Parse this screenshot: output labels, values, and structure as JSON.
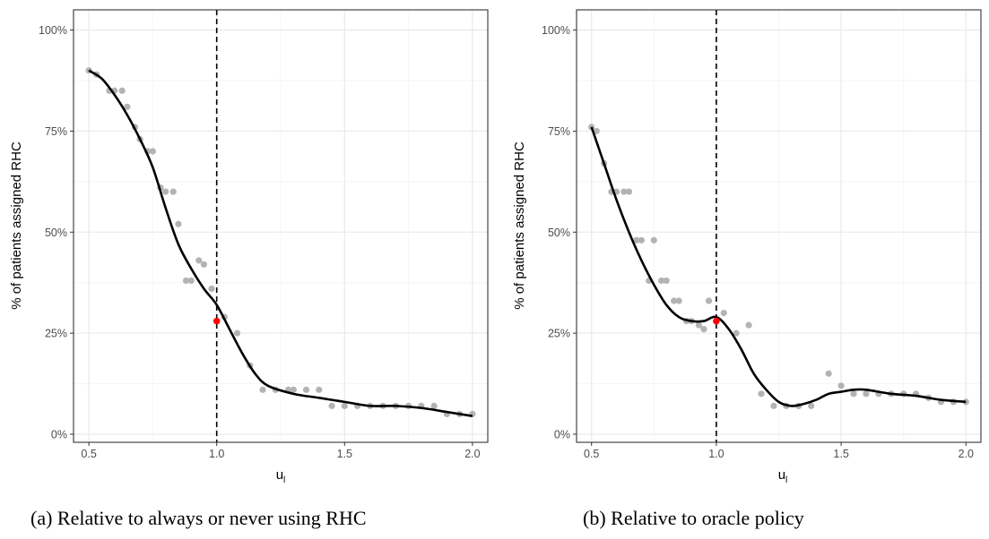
{
  "chart_data": [
    {
      "type": "scatter",
      "caption": "(a) Relative to always or never using RHC",
      "xlabel": "u",
      "xlabel_sub": "l",
      "ylabel": "% of patients assigned RHC",
      "xlim": [
        0.44,
        2.06
      ],
      "ylim": [
        -0.02,
        1.05
      ],
      "xticks": [
        0.5,
        1.0,
        1.5,
        2.0
      ],
      "xtick_labels": [
        "0.5",
        "1.0",
        "1.5",
        "2.0"
      ],
      "yticks": [
        0,
        0.25,
        0.5,
        0.75,
        1.0
      ],
      "ytick_labels": [
        "0%",
        "25%",
        "50%",
        "75%",
        "100%"
      ],
      "grid": true,
      "vline_x": 1.0,
      "points": {
        "x": [
          0.5,
          0.53,
          0.58,
          0.6,
          0.63,
          0.65,
          0.68,
          0.7,
          0.73,
          0.75,
          0.78,
          0.8,
          0.83,
          0.85,
          0.88,
          0.9,
          0.93,
          0.95,
          0.98,
          1.03,
          1.08,
          1.13,
          1.18,
          1.23,
          1.28,
          1.3,
          1.35,
          1.4,
          1.45,
          1.5,
          1.55,
          1.6,
          1.65,
          1.7,
          1.75,
          1.8,
          1.85,
          1.9,
          1.95,
          2.0
        ],
        "y": [
          0.9,
          0.89,
          0.85,
          0.85,
          0.85,
          0.81,
          0.76,
          0.73,
          0.7,
          0.7,
          0.61,
          0.6,
          0.6,
          0.52,
          0.38,
          0.38,
          0.43,
          0.42,
          0.36,
          0.29,
          0.25,
          0.17,
          0.11,
          0.11,
          0.11,
          0.11,
          0.11,
          0.11,
          0.07,
          0.07,
          0.07,
          0.07,
          0.07,
          0.07,
          0.07,
          0.07,
          0.07,
          0.05,
          0.05,
          0.05
        ]
      },
      "highlight": {
        "x": 1.0,
        "y": 0.28
      },
      "smooth": {
        "x": [
          0.5,
          0.55,
          0.6,
          0.65,
          0.7,
          0.75,
          0.8,
          0.85,
          0.9,
          0.95,
          1.0,
          1.05,
          1.1,
          1.15,
          1.2,
          1.3,
          1.4,
          1.5,
          1.6,
          1.7,
          1.8,
          1.9,
          2.0
        ],
        "y": [
          0.9,
          0.88,
          0.84,
          0.79,
          0.73,
          0.66,
          0.56,
          0.47,
          0.41,
          0.36,
          0.32,
          0.26,
          0.2,
          0.15,
          0.12,
          0.1,
          0.09,
          0.08,
          0.07,
          0.07,
          0.065,
          0.055,
          0.045
        ]
      }
    },
    {
      "type": "scatter",
      "caption": "(b) Relative to oracle policy",
      "xlabel": "u",
      "xlabel_sub": "l",
      "ylabel": "% of patients assigned RHC",
      "xlim": [
        0.44,
        2.06
      ],
      "ylim": [
        -0.02,
        1.05
      ],
      "xticks": [
        0.5,
        1.0,
        1.5,
        2.0
      ],
      "xtick_labels": [
        "0.5",
        "1.0",
        "1.5",
        "2.0"
      ],
      "yticks": [
        0,
        0.25,
        0.5,
        0.75,
        1.0
      ],
      "ytick_labels": [
        "0%",
        "25%",
        "50%",
        "75%",
        "100%"
      ],
      "grid": true,
      "vline_x": 1.0,
      "points": {
        "x": [
          0.5,
          0.52,
          0.55,
          0.58,
          0.6,
          0.63,
          0.65,
          0.68,
          0.7,
          0.73,
          0.75,
          0.78,
          0.8,
          0.83,
          0.85,
          0.88,
          0.9,
          0.93,
          0.95,
          0.97,
          1.03,
          1.08,
          1.13,
          1.18,
          1.23,
          1.28,
          1.33,
          1.38,
          1.45,
          1.5,
          1.55,
          1.6,
          1.65,
          1.7,
          1.75,
          1.8,
          1.85,
          1.9,
          1.95,
          2.0
        ],
        "y": [
          0.76,
          0.75,
          0.67,
          0.6,
          0.6,
          0.6,
          0.6,
          0.48,
          0.48,
          0.38,
          0.48,
          0.38,
          0.38,
          0.33,
          0.33,
          0.28,
          0.28,
          0.27,
          0.26,
          0.33,
          0.3,
          0.25,
          0.27,
          0.1,
          0.07,
          0.07,
          0.07,
          0.07,
          0.15,
          0.12,
          0.1,
          0.1,
          0.1,
          0.1,
          0.1,
          0.1,
          0.09,
          0.08,
          0.08,
          0.08
        ]
      },
      "highlight": {
        "x": 1.0,
        "y": 0.28
      },
      "smooth": {
        "x": [
          0.5,
          0.55,
          0.6,
          0.65,
          0.7,
          0.75,
          0.8,
          0.85,
          0.9,
          0.95,
          1.0,
          1.05,
          1.1,
          1.15,
          1.2,
          1.25,
          1.3,
          1.35,
          1.4,
          1.45,
          1.5,
          1.55,
          1.6,
          1.7,
          1.8,
          1.9,
          2.0
        ],
        "y": [
          0.76,
          0.67,
          0.58,
          0.5,
          0.43,
          0.37,
          0.32,
          0.29,
          0.28,
          0.28,
          0.29,
          0.26,
          0.21,
          0.15,
          0.11,
          0.08,
          0.07,
          0.075,
          0.085,
          0.1,
          0.105,
          0.11,
          0.11,
          0.1,
          0.095,
          0.085,
          0.08
        ]
      }
    }
  ],
  "colors": {
    "points": "#b3b3b3",
    "smooth": "#000000",
    "highlight": "#ff0000",
    "grid_major": "#ebebeb",
    "grid_minor": "#f5f5f5",
    "border": "#333333",
    "axis_text": "#4d4d4d"
  }
}
